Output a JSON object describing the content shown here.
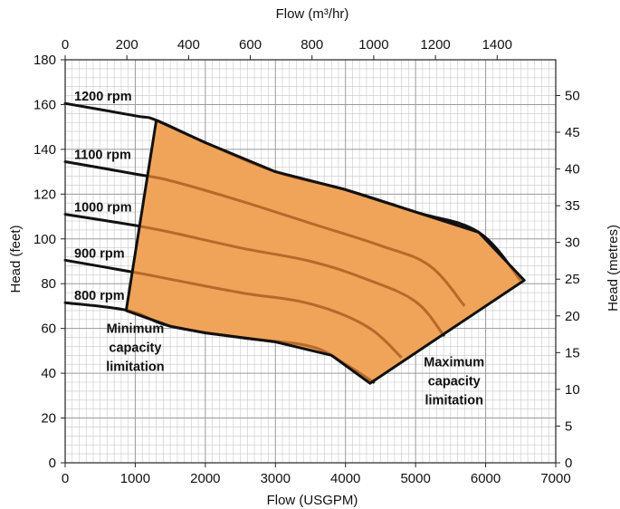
{
  "chart_data": {
    "type": "line",
    "x": [
      0,
      1000,
      2000,
      3000,
      4000,
      5000,
      6000
    ],
    "xlabel": "Flow (USGPM)",
    "ylabel": "Head (feet)",
    "xlim": [
      0,
      7000
    ],
    "ylim": [
      0,
      180
    ],
    "x_ticks": [
      0,
      1000,
      2000,
      3000,
      4000,
      5000,
      6000,
      7000
    ],
    "y_ticks": [
      0,
      20,
      40,
      60,
      80,
      100,
      120,
      140,
      160,
      180
    ],
    "secondary_x_axis": {
      "label": "Flow (m³/hr)",
      "position": "top",
      "ticks": [
        0,
        200,
        400,
        600,
        800,
        1000,
        1200,
        1400
      ],
      "scale_to_primary": 4.4029
    },
    "secondary_y_axis": {
      "label": "Head (metres)",
      "position": "right",
      "ticks": [
        0,
        5,
        10,
        15,
        20,
        25,
        30,
        35,
        40,
        45,
        50
      ],
      "scale_to_primary": 3.2808
    },
    "grid": true,
    "series": [
      {
        "name": "1200 rpm",
        "points": [
          [
            0,
            160.5
          ],
          [
            1000,
            155
          ],
          [
            1300,
            153
          ],
          [
            2000,
            143
          ],
          [
            3000,
            130
          ],
          [
            4000,
            122
          ],
          [
            5000,
            112
          ],
          [
            5900,
            103
          ],
          [
            6500,
            81.5
          ]
        ]
      },
      {
        "name": "1100 rpm",
        "points": [
          [
            0,
            134.5
          ],
          [
            1000,
            129
          ],
          [
            1500,
            126
          ],
          [
            2500,
            117
          ],
          [
            3500,
            107
          ],
          [
            4500,
            97
          ],
          [
            5200,
            88
          ],
          [
            5700,
            70
          ]
        ]
      },
      {
        "name": "1000 rpm",
        "points": [
          [
            0,
            111
          ],
          [
            1000,
            106
          ],
          [
            1500,
            103
          ],
          [
            2500,
            96
          ],
          [
            3500,
            90
          ],
          [
            4300,
            82
          ],
          [
            5000,
            72
          ],
          [
            5400,
            57
          ]
        ]
      },
      {
        "name": "900 rpm",
        "points": [
          [
            0,
            90.5
          ],
          [
            1000,
            85
          ],
          [
            1500,
            82
          ],
          [
            2500,
            76
          ],
          [
            3500,
            71
          ],
          [
            4300,
            61
          ],
          [
            4800,
            47
          ]
        ]
      },
      {
        "name": "800 rpm",
        "points": [
          [
            0,
            71.5
          ],
          [
            900,
            68
          ],
          [
            1500,
            61
          ],
          [
            2500,
            56
          ],
          [
            3500,
            52
          ],
          [
            4000,
            44
          ],
          [
            4400,
            36
          ]
        ]
      }
    ],
    "operating_region": {
      "fill_color": "#f0a45a",
      "boundary": [
        [
          870,
          68
        ],
        [
          1300,
          153
        ],
        [
          2000,
          143
        ],
        [
          3000,
          130
        ],
        [
          4000,
          122
        ],
        [
          5000,
          112
        ],
        [
          5900,
          103
        ],
        [
          6550,
          81.5
        ],
        [
          4350,
          35.5
        ],
        [
          3800,
          48
        ],
        [
          3000,
          54
        ],
        [
          2000,
          58
        ],
        [
          1500,
          61
        ]
      ]
    },
    "annotations": [
      {
        "text": [
          "Minimum",
          "capacity",
          "limitation"
        ]
      },
      {
        "text": [
          "Maximum",
          "capacity",
          "limitation"
        ]
      }
    ],
    "colors": {
      "curves": "#111111",
      "inner_curves": "#b8692a",
      "region": "#f0a45a",
      "grid": "#c8c8c8",
      "grid_major": "#9a9a9a"
    }
  }
}
